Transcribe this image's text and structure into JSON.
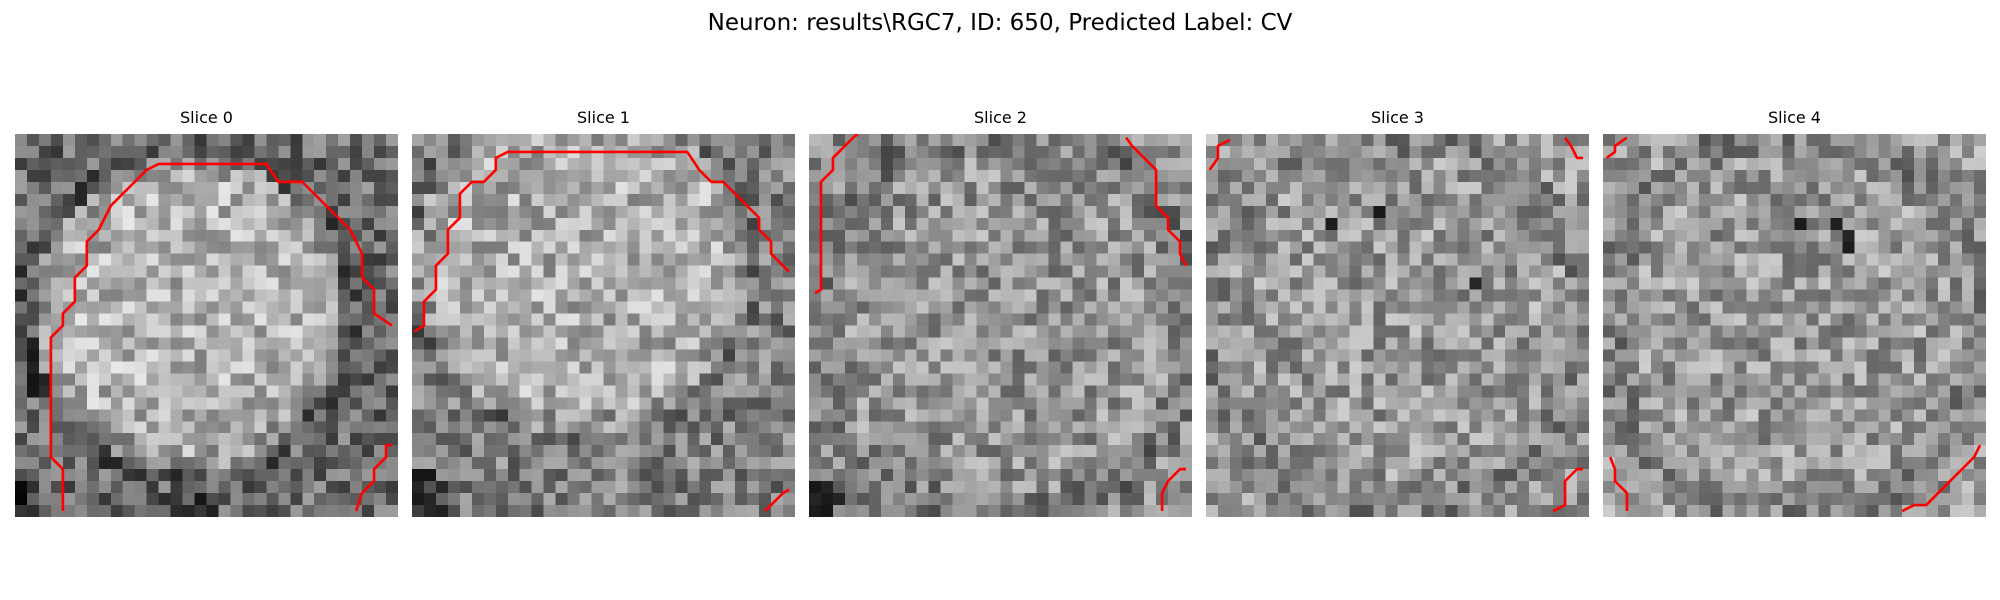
{
  "figure": {
    "title": "Neuron: results\\RGC7, ID: 650, Predicted Label: CV"
  },
  "grid_size": 32,
  "contour_color": "#ff0000",
  "slices": [
    {
      "title": "Slice 0",
      "contours": [
        [
          [
            4,
            31.5
          ],
          [
            4,
            28
          ],
          [
            3,
            27
          ],
          [
            3,
            17
          ],
          [
            4,
            16
          ],
          [
            4,
            15
          ],
          [
            5,
            14
          ],
          [
            5,
            12
          ],
          [
            6,
            11
          ],
          [
            6,
            9
          ],
          [
            7,
            8
          ],
          [
            8,
            6
          ],
          [
            9,
            5
          ],
          [
            10,
            4
          ],
          [
            11,
            3
          ],
          [
            12,
            2.5
          ],
          [
            21,
            2.5
          ],
          [
            22,
            4
          ],
          [
            24,
            4
          ],
          [
            26,
            6
          ],
          [
            28,
            8
          ],
          [
            29,
            10
          ],
          [
            29,
            12
          ],
          [
            30,
            13
          ],
          [
            30,
            15
          ],
          [
            31.5,
            16
          ]
        ],
        [
          [
            28.5,
            31.5
          ],
          [
            29,
            30
          ],
          [
            30,
            29
          ],
          [
            30,
            28
          ],
          [
            31,
            27
          ],
          [
            31,
            26
          ],
          [
            31.5,
            26
          ]
        ]
      ],
      "dark_spots": [
        [
          1,
          17
        ],
        [
          1,
          18
        ],
        [
          1,
          19
        ],
        [
          1,
          20
        ],
        [
          1,
          21
        ]
      ]
    },
    {
      "title": "Slice 1",
      "contours": [
        [
          [
            0.2,
            16.5
          ],
          [
            1,
            16
          ],
          [
            1,
            14
          ],
          [
            2,
            13
          ],
          [
            2,
            11
          ],
          [
            3,
            10
          ],
          [
            3,
            8
          ],
          [
            4,
            7
          ],
          [
            4,
            5
          ],
          [
            5,
            4
          ],
          [
            6,
            4
          ],
          [
            7,
            3
          ],
          [
            7,
            2
          ],
          [
            8,
            1.5
          ],
          [
            23,
            1.5
          ],
          [
            24,
            3
          ],
          [
            25,
            4
          ],
          [
            26,
            4
          ],
          [
            27,
            5
          ],
          [
            28,
            6
          ],
          [
            29,
            7
          ],
          [
            29,
            8
          ],
          [
            30,
            9
          ],
          [
            30,
            10
          ],
          [
            31,
            11
          ],
          [
            31.5,
            11.5
          ]
        ],
        [
          [
            29.5,
            31.5
          ],
          [
            30,
            31
          ],
          [
            31,
            30
          ],
          [
            31.5,
            29.7
          ]
        ]
      ],
      "dark_spots": [
        [
          0,
          28
        ],
        [
          1,
          28
        ],
        [
          2,
          29
        ],
        [
          0,
          29
        ],
        [
          1,
          30
        ],
        [
          0,
          30
        ],
        [
          1,
          31
        ],
        [
          2,
          31
        ]
      ]
    },
    {
      "title": "Slice 2",
      "contours": [
        [
          [
            0.5,
            13.3
          ],
          [
            1,
            13
          ],
          [
            1,
            4
          ],
          [
            2,
            3
          ],
          [
            2,
            2
          ],
          [
            3,
            1
          ],
          [
            4,
            0
          ],
          [
            4,
            0.2
          ]
        ],
        [
          [
            26.5,
            0.3
          ],
          [
            27,
            1
          ],
          [
            28,
            2
          ],
          [
            29,
            3
          ],
          [
            29,
            6
          ],
          [
            30,
            7
          ],
          [
            30,
            8
          ],
          [
            31,
            9
          ],
          [
            31,
            10
          ],
          [
            31.5,
            11
          ]
        ],
        [
          [
            29.5,
            31.5
          ],
          [
            29.5,
            30
          ],
          [
            30,
            29
          ],
          [
            31,
            28
          ],
          [
            31.5,
            28
          ]
        ]
      ],
      "dark_spots": [
        [
          0,
          29
        ],
        [
          1,
          29
        ],
        [
          0,
          30
        ],
        [
          1,
          30
        ],
        [
          0,
          31
        ],
        [
          1,
          31
        ],
        [
          2,
          30
        ]
      ]
    },
    {
      "title": "Slice 3",
      "contours": [
        [
          [
            0.3,
            3
          ],
          [
            1,
            2
          ],
          [
            1,
            1
          ],
          [
            2,
            0.5
          ]
        ],
        [
          [
            30,
            0.3
          ],
          [
            30.5,
            1
          ],
          [
            31,
            2
          ],
          [
            31.5,
            2
          ]
        ],
        [
          [
            29,
            31.5
          ],
          [
            30,
            31
          ],
          [
            30,
            29
          ],
          [
            31,
            28
          ],
          [
            31.5,
            28
          ]
        ]
      ],
      "dark_spots": [
        [
          22,
          12
        ],
        [
          14,
          6
        ],
        [
          10,
          7
        ]
      ]
    },
    {
      "title": "Slice 4",
      "contours": [
        [
          [
            0.3,
            2
          ],
          [
            1,
            1.5
          ],
          [
            1,
            1
          ],
          [
            2,
            0.3
          ]
        ],
        [
          [
            0.6,
            27
          ],
          [
            1,
            28
          ],
          [
            1,
            29
          ],
          [
            2,
            30
          ],
          [
            2,
            31.5
          ]
        ],
        [
          [
            25,
            31.5
          ],
          [
            26,
            31
          ],
          [
            27,
            31
          ],
          [
            28,
            30
          ],
          [
            29,
            29
          ],
          [
            30,
            28
          ],
          [
            31,
            27
          ],
          [
            31.5,
            26
          ]
        ]
      ],
      "dark_spots": [
        [
          19,
          7
        ],
        [
          20,
          8
        ],
        [
          16,
          7
        ],
        [
          20,
          9
        ]
      ]
    }
  ]
}
